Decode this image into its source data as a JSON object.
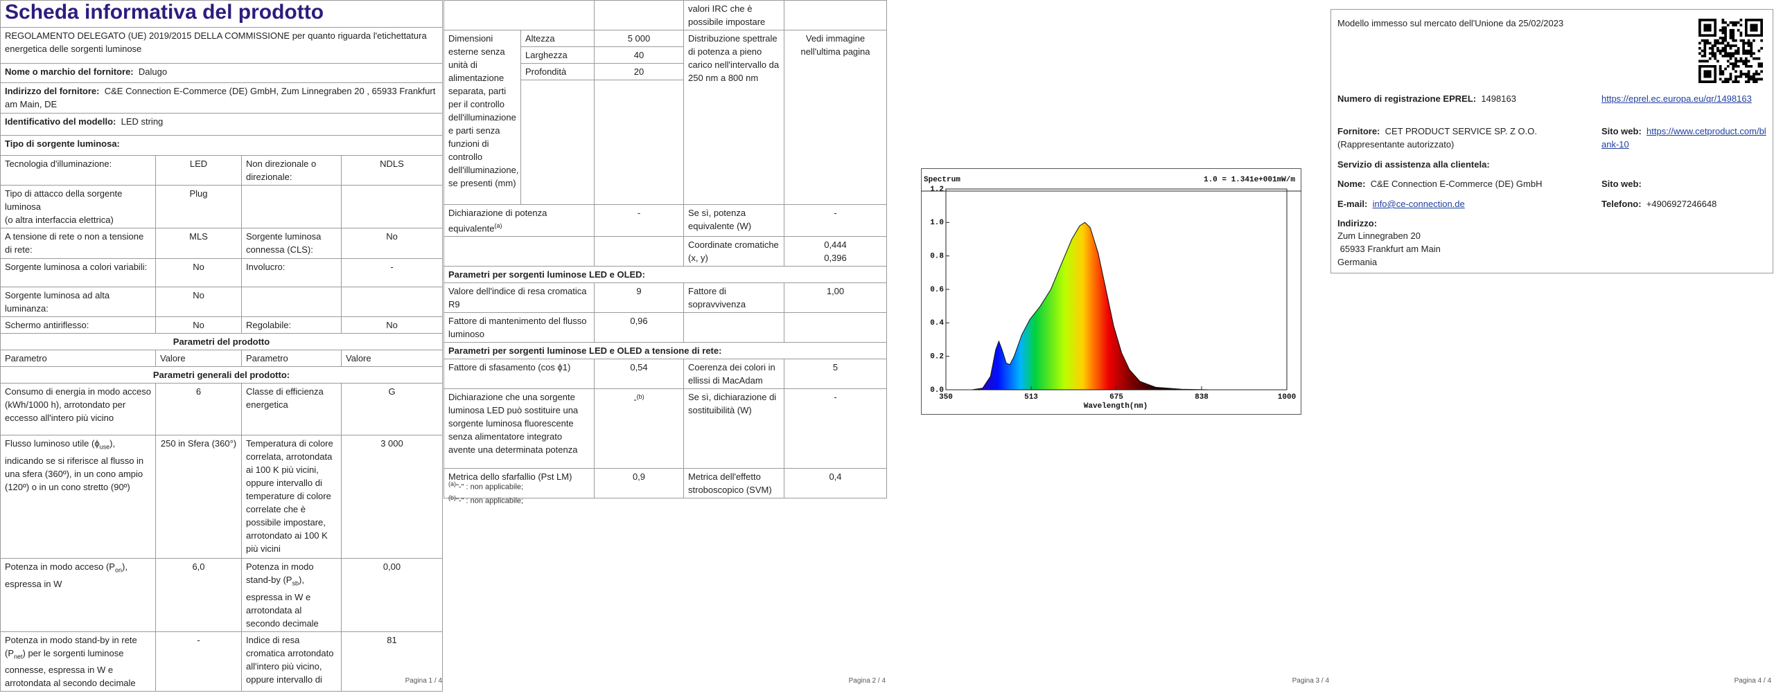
{
  "p1": {
    "title": "Scheda informativa del prodotto",
    "regulation": "REGOLAMENTO DELEGATO (UE) 2019/2015 DELLA COMMISSIONE per quanto riguarda l'etichettatura energetica delle sorgenti luminose",
    "supplier_name_label": "Nome o marchio del fornitore:",
    "supplier_name": "Dalugo",
    "supplier_address_label": "Indirizzo del fornitore:",
    "supplier_address": "C&E Connection E-Commerce (DE) GmbH, Zum Linnegraben 20 , 65933 Frankfurt am Main, DE",
    "model_label": "Identificativo del modello:",
    "model": "LED string",
    "source_type": "Tipo di sorgente luminosa:",
    "source_rows": [
      [
        "Tecnologia d'illuminazione:",
        "LED",
        "Non direzionale o direzionale:",
        "NDLS"
      ],
      [
        "Tipo di attacco della sorgente luminosa\n(o altra interfaccia elettrica)",
        "Plug"
      ],
      [
        "A tensione di rete o non a tensione di rete:",
        "MLS",
        "Sorgente luminosa connessa (CLS):",
        "No"
      ],
      [
        "Sorgente luminosa a colori variabili:",
        "No",
        "Involucro:",
        "-"
      ],
      [
        "Sorgente luminosa ad alta luminanza:",
        "No"
      ],
      [
        "Schermo antiriflesso:",
        "No",
        "Regolabile:",
        "No"
      ]
    ],
    "product_params": "Parametri del prodotto",
    "header": [
      "Parametro",
      "Valore",
      "Parametro",
      "Valore"
    ],
    "general_params": "Parametri generali del prodotto:",
    "param_rows": [
      [
        "Consumo di energia in modo acceso (kWh/1000 h), arrotondato per eccesso all'intero più vicino",
        "6",
        "Classe di efficienza energetica",
        "G"
      ],
      [
        {
          "parts": [
            "Flusso luminoso utile (ϕ",
            "use",
            "), indicando se si riferisce al flusso in una sfera (360º), in un cono ampio (120º) o in un cono stretto (90º)"
          ]
        },
        "250 in Sfera (360°)",
        "Temperatura di colore correlata, arrotondata ai 100 K più vicini, oppure intervallo di temperature di colore correlate che è possibile impostare, arrotondato ai 100 K più vicini",
        "3 000"
      ],
      [
        {
          "parts": [
            "Potenza in modo acceso (P",
            "on",
            "), espressa in W"
          ]
        },
        "6,0",
        {
          "parts": [
            "Potenza in modo stand-by (P",
            "sb",
            "), espressa in W e arrotondata al secondo decimale"
          ]
        },
        "0,00"
      ],
      [
        {
          "parts": [
            "Potenza in modo stand-by in rete (P",
            "net",
            ") per le sorgenti luminose connesse, espressa in W e arrotondata al secondo decimale"
          ]
        },
        "-",
        "Indice di resa cromatica arrotondato all'intero più vicino, oppure intervallo di",
        "81"
      ]
    ],
    "footer": "Pagina 1 / 4"
  },
  "p2": {
    "top": "valori IRC che è possibile impostare",
    "dim_label": "Dimensioni esterne senza unità di alimentazione separata, parti per il controllo dell'illuminazione e parti senza funzioni di controllo dell'illuminazione, se presenti (mm)",
    "dims": [
      [
        "Altezza",
        "5 000"
      ],
      [
        "Larghezza",
        "40"
      ],
      [
        "Profondità",
        "20"
      ]
    ],
    "spd_label": "Distribuzione spettrale di potenza a pieno carico nell'intervallo da 250 nm a 800 nm",
    "spd_value": "Vedi immagine nell'ultima pagina",
    "equiv": [
      {
        "parts": [
          "Dichiarazione di potenza equivalente",
          "(a)"
        ]
      },
      "-",
      "Se sì, potenza equivalente (W)",
      "-"
    ],
    "chroma": [
      "Coordinate cromatiche (x, y)",
      "0,444\n0,396"
    ],
    "led_title": "Parametri per sorgenti luminose LED e OLED:",
    "led_rows": [
      [
        "Valore dell'indice di resa cromatica R9",
        "9",
        "Fattore di sopravvivenza",
        "1,00"
      ],
      [
        "Fattore di mantenimento del flusso luminoso",
        "0,96"
      ]
    ],
    "mains_title": "Parametri per sorgenti luminose LED e OLED a tensione di rete:",
    "mains_rows": [
      [
        "Fattore di sfasamento (cos ϕ1)",
        "0,54",
        "Coerenza dei colori in ellissi di MacAdam",
        "5"
      ],
      [
        "Dichiarazione che una sorgente luminosa LED può sostituire una sorgente luminosa fluorescente senza alimentatore integrato avente una determinata potenza",
        {
          "parts": [
            "-",
            "(b)"
          ]
        },
        "Se sì, dichiarazione di sostituibilità (W)",
        "-"
      ],
      [
        "Metrica dello sfarfallio (Pst LM)",
        "0,9",
        "Metrica dell'effetto stroboscopico (SVM)",
        "0,4"
      ]
    ],
    "notes": [
      {
        "parts": [
          "(a)",
          "\"-\" : non applicabile;"
        ]
      },
      {
        "parts": [
          "(b)",
          "\"-\" : non applicabile;"
        ]
      }
    ],
    "footer": "Pagina 2 / 4"
  },
  "p3": {
    "spectrum": {
      "title": "Spectrum",
      "scale_note": "1.0 = 1.341e+001mW/m",
      "yticks": [
        "1.2",
        "1.0",
        "0.8",
        "0.6",
        "0.4",
        "0.2",
        "0.0"
      ],
      "xticks": [
        "350",
        "513",
        "675",
        "838",
        "1000"
      ],
      "xlabel": "Wavelength(nm)"
    },
    "footer": "Pagina 3 / 4"
  },
  "p4": {
    "market": "Modello immesso sul mercato dell'Unione da 25/02/2023",
    "eprel_label": "Numero di registrazione EPREL:",
    "eprel": "1498163",
    "eprel_link": "https://eprel.ec.europa.eu/qr/1498163",
    "supplier_label": "Fornitore:",
    "supplier": "CET PRODUCT SERVICE SP. Z O.O. (Rappresentante autorizzato)",
    "web_label": "Sito web:",
    "web": "https://www.cetproduct.com/blank-10",
    "service": "Servizio di assistenza alla clientela:",
    "name_label": "Nome:",
    "name": "C&E Connection E-Commerce (DE) GmbH",
    "web2_label": "Sito web:",
    "email_label": "E-mail:",
    "email": "info@ce-connection.de",
    "phone_label": "Telefono:",
    "phone": "+4906927246648",
    "address_label": "Indirizzo:",
    "address": [
      "Zum Linnegraben 20",
      " 65933 Frankfurt am Main",
      "Germania"
    ],
    "footer": "Pagina 4 / 4"
  }
}
